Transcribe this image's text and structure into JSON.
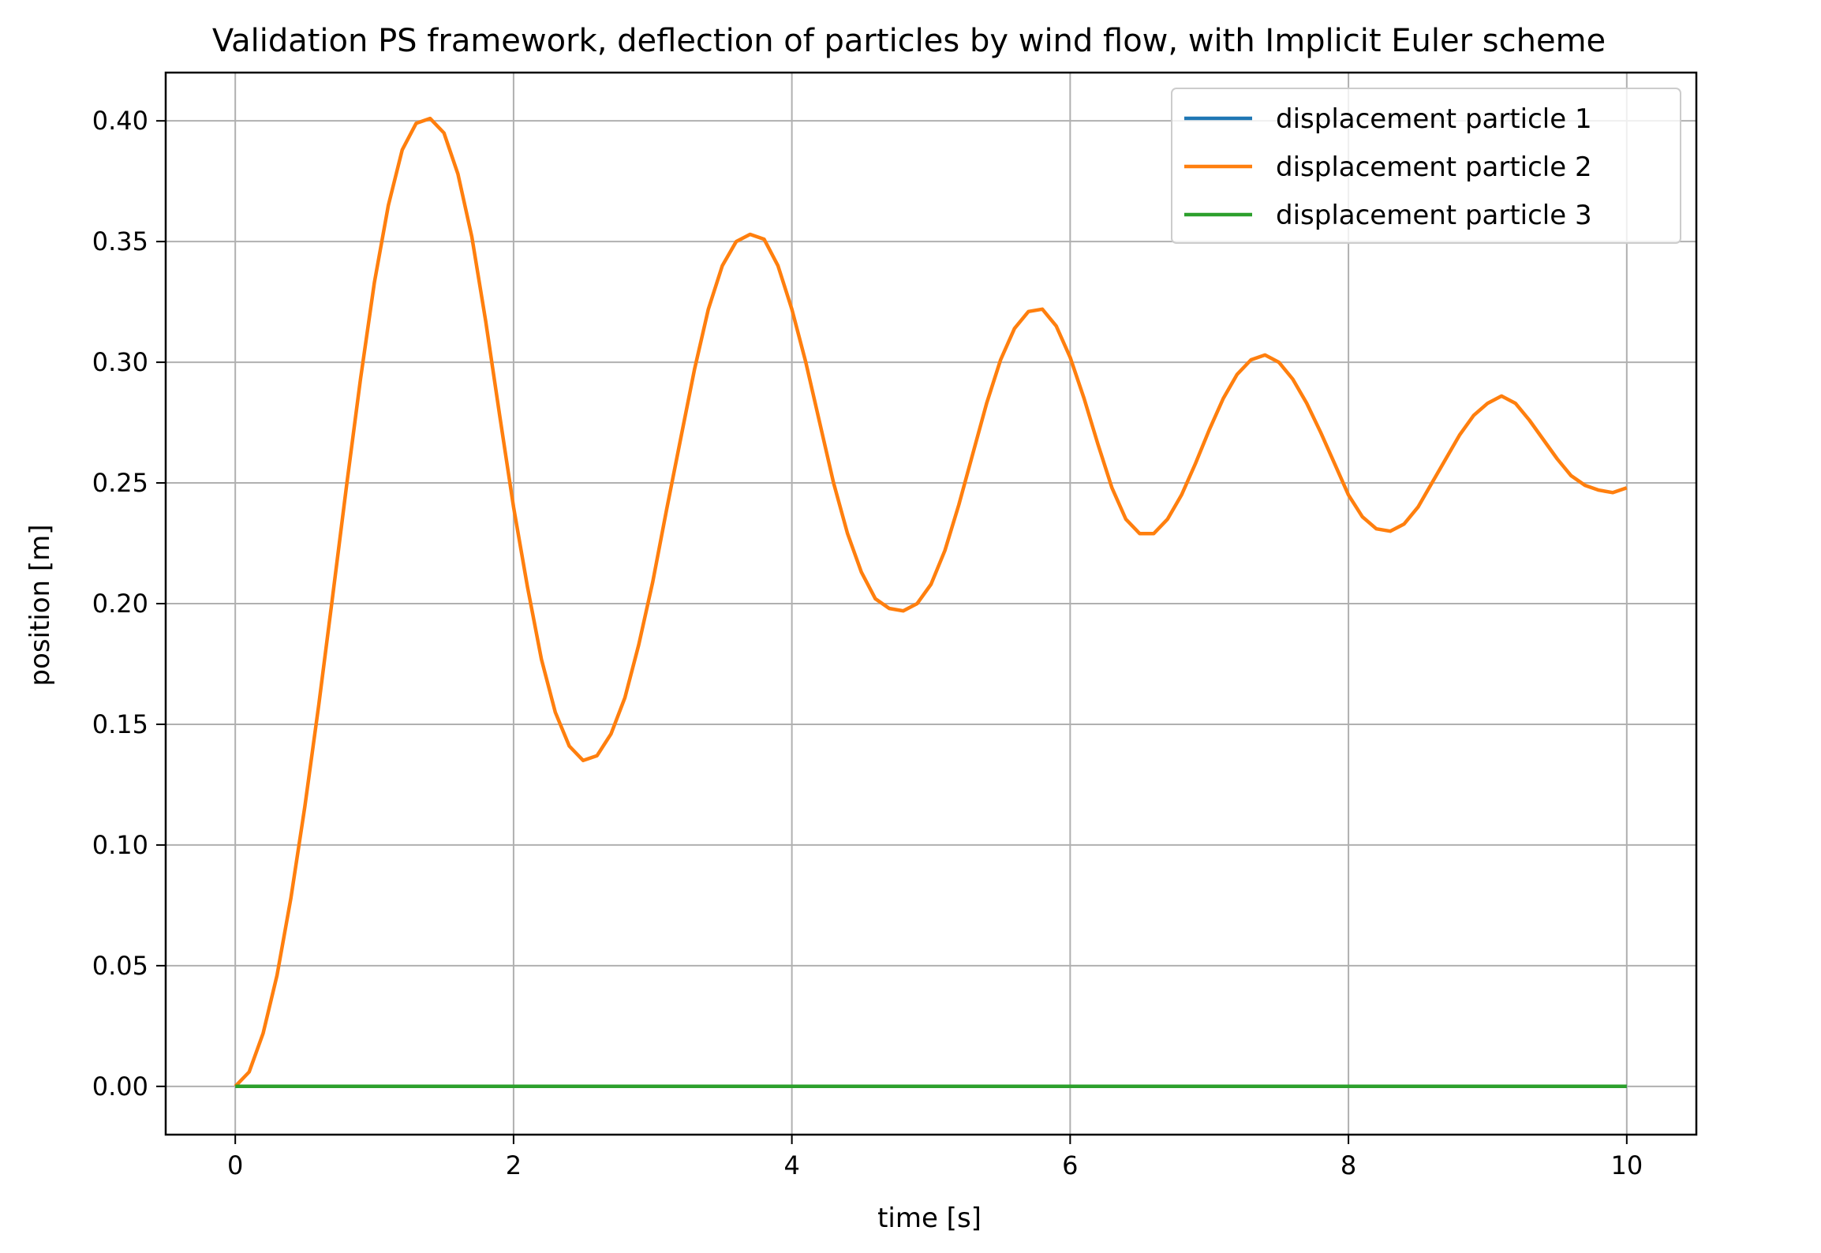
{
  "chart_data": {
    "type": "line",
    "title": "Validation PS framework, deflection of particles by wind flow, with Implicit Euler scheme",
    "xlabel": "time [s]",
    "ylabel": "position [m]",
    "xlim": [
      -0.5,
      10.5
    ],
    "ylim": [
      -0.02,
      0.42
    ],
    "xticks": [
      0,
      2,
      4,
      6,
      8,
      10
    ],
    "xtick_labels": [
      "0",
      "2",
      "4",
      "6",
      "8",
      "10"
    ],
    "yticks": [
      0.0,
      0.05,
      0.1,
      0.15,
      0.2,
      0.25,
      0.3,
      0.35,
      0.4
    ],
    "ytick_labels": [
      "0.00",
      "0.05",
      "0.10",
      "0.15",
      "0.20",
      "0.25",
      "0.30",
      "0.35",
      "0.40"
    ],
    "grid": true,
    "legend_position": "top-right",
    "series": [
      {
        "name": "displacement particle 1",
        "color": "#1f77b4",
        "x": [
          0,
          10
        ],
        "y": [
          0,
          0
        ]
      },
      {
        "name": "displacement particle 2",
        "color": "#ff7f0e",
        "x": [
          0,
          0.1,
          0.2,
          0.3,
          0.4,
          0.5,
          0.6,
          0.7,
          0.8,
          0.9,
          1.0,
          1.1,
          1.2,
          1.3,
          1.4,
          1.5,
          1.6,
          1.7,
          1.8,
          1.9,
          2.0,
          2.1,
          2.2,
          2.3,
          2.4,
          2.5,
          2.6,
          2.7,
          2.8,
          2.9,
          3.0,
          3.1,
          3.2,
          3.3,
          3.4,
          3.5,
          3.6,
          3.7,
          3.8,
          3.9,
          4.0,
          4.1,
          4.2,
          4.3,
          4.4,
          4.5,
          4.6,
          4.7,
          4.8,
          4.9,
          5.0,
          5.1,
          5.2,
          5.3,
          5.4,
          5.5,
          5.6,
          5.7,
          5.8,
          5.9,
          6.0,
          6.1,
          6.2,
          6.3,
          6.4,
          6.5,
          6.6,
          6.7,
          6.8,
          6.9,
          7.0,
          7.1,
          7.2,
          7.3,
          7.4,
          7.5,
          7.6,
          7.7,
          7.8,
          7.9,
          8.0,
          8.1,
          8.2,
          8.3,
          8.4,
          8.5,
          8.6,
          8.7,
          8.8,
          8.9,
          9.0,
          9.1,
          9.2,
          9.3,
          9.4,
          9.5,
          9.6,
          9.7,
          9.8,
          9.9,
          10.0
        ],
        "y": [
          0.0,
          0.006,
          0.022,
          0.046,
          0.078,
          0.116,
          0.158,
          0.203,
          0.249,
          0.293,
          0.333,
          0.365,
          0.388,
          0.399,
          0.401,
          0.395,
          0.378,
          0.352,
          0.317,
          0.278,
          0.24,
          0.207,
          0.177,
          0.155,
          0.141,
          0.135,
          0.137,
          0.146,
          0.161,
          0.183,
          0.209,
          0.239,
          0.268,
          0.297,
          0.322,
          0.34,
          0.35,
          0.353,
          0.351,
          0.34,
          0.322,
          0.3,
          0.275,
          0.25,
          0.229,
          0.213,
          0.202,
          0.198,
          0.197,
          0.2,
          0.208,
          0.222,
          0.241,
          0.262,
          0.283,
          0.301,
          0.314,
          0.321,
          0.322,
          0.315,
          0.302,
          0.285,
          0.266,
          0.248,
          0.235,
          0.229,
          0.229,
          0.235,
          0.245,
          0.258,
          0.272,
          0.285,
          0.295,
          0.301,
          0.303,
          0.3,
          0.293,
          0.283,
          0.271,
          0.258,
          0.245,
          0.236,
          0.231,
          0.23,
          0.233,
          0.24,
          0.25,
          0.26,
          0.27,
          0.278,
          0.283,
          0.286,
          0.283,
          0.276,
          0.268,
          0.26,
          0.253,
          0.249,
          0.247,
          0.246,
          0.248
        ]
      },
      {
        "name": "displacement particle 3",
        "color": "#2ca02c",
        "x": [
          0,
          10
        ],
        "y": [
          0,
          0
        ]
      }
    ]
  }
}
